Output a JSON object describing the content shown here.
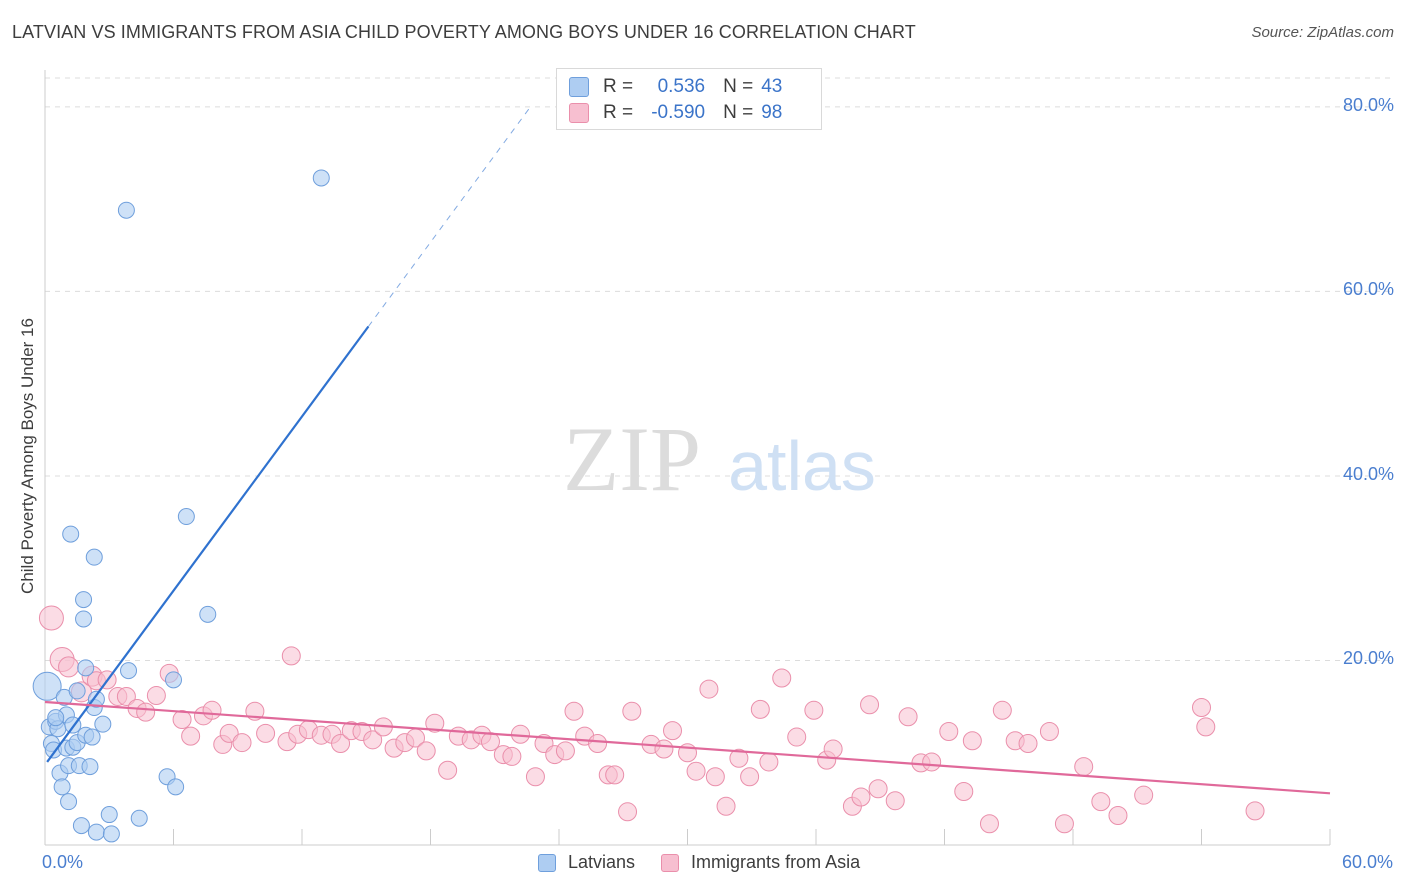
{
  "header": {
    "title": "LATVIAN VS IMMIGRANTS FROM ASIA CHILD POVERTY AMONG BOYS UNDER 16 CORRELATION CHART",
    "source": "Source: ZipAtlas.com"
  },
  "watermark": {
    "zip": "ZIP",
    "atlas": "atlas"
  },
  "legend_box": {
    "rows": [
      {
        "r_label": "R =",
        "r_value": "0.536",
        "n_label": "N =",
        "n_value": "43"
      },
      {
        "r_label": "R =",
        "r_value": "-0.590",
        "n_label": "N =",
        "n_value": "98"
      }
    ]
  },
  "legend_bottom": {
    "items": [
      "Latvians",
      "Immigrants from Asia"
    ]
  },
  "colors": {
    "latvians_fill": "#aecdf2",
    "latvians_stroke": "#6f9fdc",
    "latvians_line": "#2f72cf",
    "asia_fill": "#f7bfd0",
    "asia_stroke": "#ea8fab",
    "asia_line": "#e0699a",
    "tick_text": "#4a7ecf",
    "grid": "#dcdcdc"
  },
  "chart_data": {
    "type": "scatter",
    "title": "LATVIAN VS IMMIGRANTS FROM ASIA CHILD POVERTY AMONG BOYS UNDER 16 CORRELATION CHART",
    "xlabel": "",
    "ylabel": "Child Poverty Among Boys Under 16",
    "xlim": [
      0,
      60
    ],
    "ylim": [
      0,
      84
    ],
    "x_tick_labels": [
      "0.0%",
      "60.0%"
    ],
    "y_ticks": [
      20,
      40,
      60,
      80
    ],
    "y_tick_labels": [
      "20.0%",
      "40.0%",
      "60.0%",
      "80.0%"
    ],
    "grid": true,
    "legend_position": "top-center",
    "series": [
      {
        "name": "Latvians",
        "r": 0.536,
        "n": 43,
        "trend": {
          "x0": 0.1,
          "y0": 9.0,
          "x1": 15.1,
          "y1": 56.2,
          "dash_to_x": 22.6,
          "dash_to_y": 79.8
        },
        "points": [
          [
            0.1,
            17.2
          ],
          [
            0.2,
            12.8
          ],
          [
            0.3,
            11.0
          ],
          [
            0.4,
            10.3
          ],
          [
            0.5,
            13.4
          ],
          [
            0.6,
            12.6
          ],
          [
            0.7,
            7.8
          ],
          [
            0.8,
            6.3
          ],
          [
            0.9,
            16.0
          ],
          [
            1.0,
            14.1
          ],
          [
            1.0,
            10.5
          ],
          [
            1.1,
            4.7
          ],
          [
            1.1,
            8.6
          ],
          [
            1.2,
            33.7
          ],
          [
            1.3,
            13.0
          ],
          [
            1.3,
            10.6
          ],
          [
            1.5,
            16.7
          ],
          [
            1.5,
            11.1
          ],
          [
            1.6,
            8.6
          ],
          [
            1.7,
            2.1
          ],
          [
            1.8,
            26.6
          ],
          [
            1.8,
            24.5
          ],
          [
            1.9,
            19.2
          ],
          [
            2.1,
            8.5
          ],
          [
            2.3,
            14.9
          ],
          [
            2.4,
            1.4
          ],
          [
            2.3,
            31.2
          ],
          [
            2.4,
            15.8
          ],
          [
            2.7,
            13.1
          ],
          [
            3.0,
            3.3
          ],
          [
            3.1,
            1.2
          ],
          [
            3.8,
            68.8
          ],
          [
            3.9,
            18.9
          ],
          [
            4.4,
            2.9
          ],
          [
            5.7,
            7.4
          ],
          [
            6.0,
            17.9
          ],
          [
            6.1,
            6.3
          ],
          [
            6.6,
            35.6
          ],
          [
            7.6,
            25.0
          ],
          [
            12.9,
            72.3
          ],
          [
            0.5,
            13.8
          ],
          [
            1.9,
            11.9
          ],
          [
            2.2,
            11.7
          ]
        ]
      },
      {
        "name": "Immigrants from Asia",
        "r": -0.59,
        "n": 98,
        "trend": {
          "x0": 0,
          "y0": 15.5,
          "x1": 60,
          "y1": 5.6
        },
        "points": [
          [
            0.3,
            24.6
          ],
          [
            0.8,
            20.1
          ],
          [
            1.1,
            19.3
          ],
          [
            1.7,
            16.6
          ],
          [
            2.2,
            18.3
          ],
          [
            2.4,
            17.8
          ],
          [
            2.9,
            17.9
          ],
          [
            3.4,
            16.1
          ],
          [
            3.8,
            16.1
          ],
          [
            4.3,
            14.8
          ],
          [
            4.7,
            14.4
          ],
          [
            5.2,
            16.2
          ],
          [
            5.8,
            18.6
          ],
          [
            6.4,
            13.6
          ],
          [
            6.8,
            11.8
          ],
          [
            7.4,
            14.0
          ],
          [
            7.8,
            14.6
          ],
          [
            8.3,
            10.9
          ],
          [
            8.6,
            12.1
          ],
          [
            9.2,
            11.1
          ],
          [
            9.8,
            14.5
          ],
          [
            10.3,
            12.1
          ],
          [
            11.3,
            11.2
          ],
          [
            11.5,
            20.5
          ],
          [
            11.8,
            12.0
          ],
          [
            12.3,
            12.5
          ],
          [
            12.9,
            11.9
          ],
          [
            13.4,
            12.0
          ],
          [
            13.8,
            11.0
          ],
          [
            14.3,
            12.4
          ],
          [
            14.8,
            12.3
          ],
          [
            15.3,
            11.4
          ],
          [
            15.8,
            12.8
          ],
          [
            16.3,
            10.5
          ],
          [
            16.8,
            11.1
          ],
          [
            17.3,
            11.6
          ],
          [
            17.8,
            10.2
          ],
          [
            18.2,
            13.2
          ],
          [
            18.8,
            8.1
          ],
          [
            19.3,
            11.8
          ],
          [
            19.9,
            11.4
          ],
          [
            20.4,
            11.9
          ],
          [
            20.8,
            11.2
          ],
          [
            21.4,
            9.8
          ],
          [
            21.8,
            9.6
          ],
          [
            22.2,
            12.0
          ],
          [
            22.9,
            7.4
          ],
          [
            23.3,
            11.0
          ],
          [
            23.8,
            9.8
          ],
          [
            24.3,
            10.2
          ],
          [
            24.7,
            14.5
          ],
          [
            25.2,
            11.8
          ],
          [
            25.8,
            11.0
          ],
          [
            26.3,
            7.6
          ],
          [
            26.6,
            7.6
          ],
          [
            27.2,
            3.6
          ],
          [
            27.4,
            14.5
          ],
          [
            28.3,
            10.9
          ],
          [
            28.9,
            10.4
          ],
          [
            29.3,
            12.4
          ],
          [
            30.0,
            10.0
          ],
          [
            30.4,
            8.0
          ],
          [
            31.0,
            16.9
          ],
          [
            31.3,
            7.4
          ],
          [
            31.8,
            4.2
          ],
          [
            32.4,
            9.4
          ],
          [
            32.9,
            7.4
          ],
          [
            33.4,
            14.7
          ],
          [
            33.8,
            9.0
          ],
          [
            34.4,
            18.1
          ],
          [
            35.1,
            11.7
          ],
          [
            35.9,
            14.6
          ],
          [
            36.5,
            9.2
          ],
          [
            36.8,
            10.4
          ],
          [
            37.7,
            4.2
          ],
          [
            38.1,
            5.2
          ],
          [
            38.5,
            15.2
          ],
          [
            38.9,
            6.1
          ],
          [
            39.7,
            4.8
          ],
          [
            40.3,
            13.9
          ],
          [
            40.9,
            8.9
          ],
          [
            41.4,
            9.0
          ],
          [
            42.2,
            12.3
          ],
          [
            42.9,
            5.8
          ],
          [
            43.3,
            11.3
          ],
          [
            44.7,
            14.6
          ],
          [
            44.1,
            2.3
          ],
          [
            45.3,
            11.3
          ],
          [
            45.9,
            11.0
          ],
          [
            46.9,
            12.3
          ],
          [
            47.6,
            2.3
          ],
          [
            48.5,
            8.5
          ],
          [
            49.3,
            4.7
          ],
          [
            50.1,
            3.2
          ],
          [
            51.3,
            5.4
          ],
          [
            54.0,
            14.9
          ],
          [
            54.2,
            12.8
          ],
          [
            56.5,
            3.7
          ]
        ]
      }
    ]
  }
}
